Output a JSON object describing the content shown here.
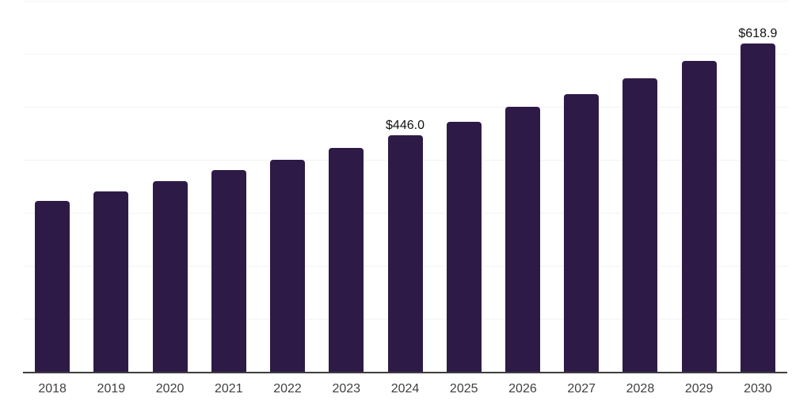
{
  "chart_data": {
    "type": "bar",
    "title": "",
    "xlabel": "",
    "ylabel": "",
    "categories": [
      "2018",
      "2019",
      "2020",
      "2021",
      "2022",
      "2023",
      "2024",
      "2025",
      "2026",
      "2027",
      "2028",
      "2029",
      "2030"
    ],
    "values": [
      323,
      341,
      360,
      380,
      400,
      422,
      446.0,
      471,
      499,
      524,
      554,
      586,
      618.9
    ],
    "data_labels": [
      null,
      null,
      null,
      null,
      null,
      null,
      "$446.0",
      null,
      null,
      null,
      null,
      null,
      "$618.9"
    ],
    "ylim": [
      0,
      700
    ],
    "grid_interval": 100,
    "grid_visible": true,
    "legend_position": "none",
    "colors": {
      "bar": "#2E1A47",
      "gridline": "#F2F2F3",
      "axis_line": "#3E3E3E",
      "tick_label": "#3F3F3F",
      "data_label": "#111111",
      "background": "#FFFFFF"
    }
  }
}
